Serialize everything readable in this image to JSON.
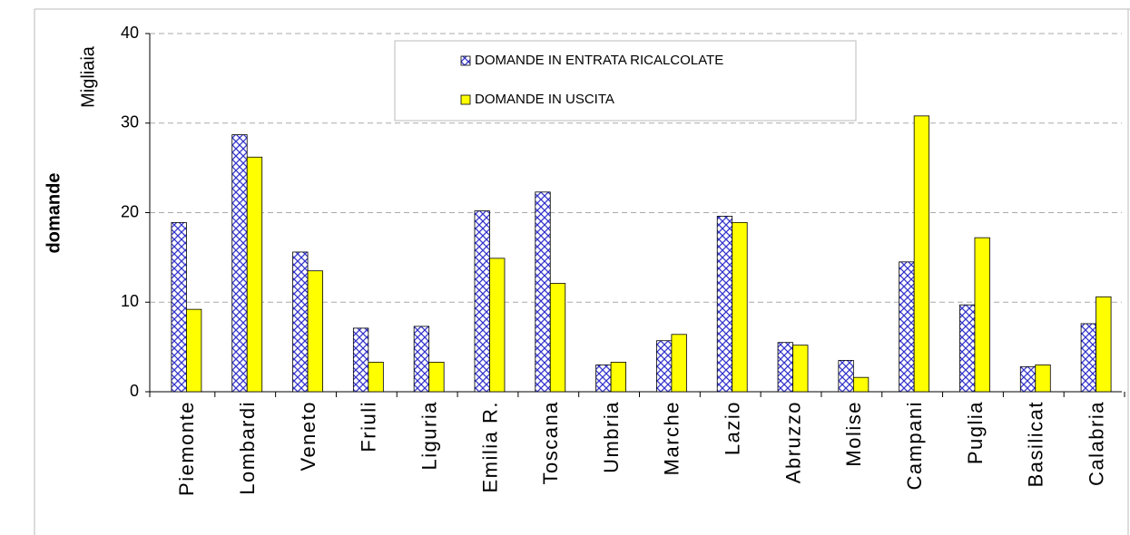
{
  "chart_data": {
    "type": "bar",
    "y_label": "domande",
    "y_unit": "Migliaia",
    "categories": [
      "Piemonte",
      "Lombardi",
      "Veneto",
      "Friuli",
      "Liguria",
      "Emilia R.",
      "Toscana",
      "Umbria",
      "Marche",
      "Lazio",
      "Abruzzo",
      "Molise",
      "Campani",
      "Puglia",
      "Basilicat",
      "Calabria"
    ],
    "series": [
      {
        "name": "DOMANDE IN ENTRATA RICALCOLATE",
        "color": "#3333cc",
        "pattern": "crosshatch",
        "values": [
          18.9,
          28.7,
          15.6,
          7.1,
          7.3,
          20.2,
          22.3,
          3.0,
          5.7,
          19.6,
          5.5,
          3.5,
          14.5,
          9.7,
          2.8,
          7.6
        ]
      },
      {
        "name": "DOMANDE IN USCITA",
        "color": "#ffff00",
        "values": [
          9.2,
          26.2,
          13.5,
          3.3,
          3.3,
          14.9,
          12.1,
          3.3,
          6.4,
          18.9,
          5.2,
          1.6,
          30.8,
          17.2,
          3.0,
          10.6
        ]
      }
    ],
    "ylim": [
      0,
      40
    ],
    "yticks": [
      0,
      10,
      20,
      30,
      40
    ],
    "grid": true,
    "legend": "top"
  }
}
